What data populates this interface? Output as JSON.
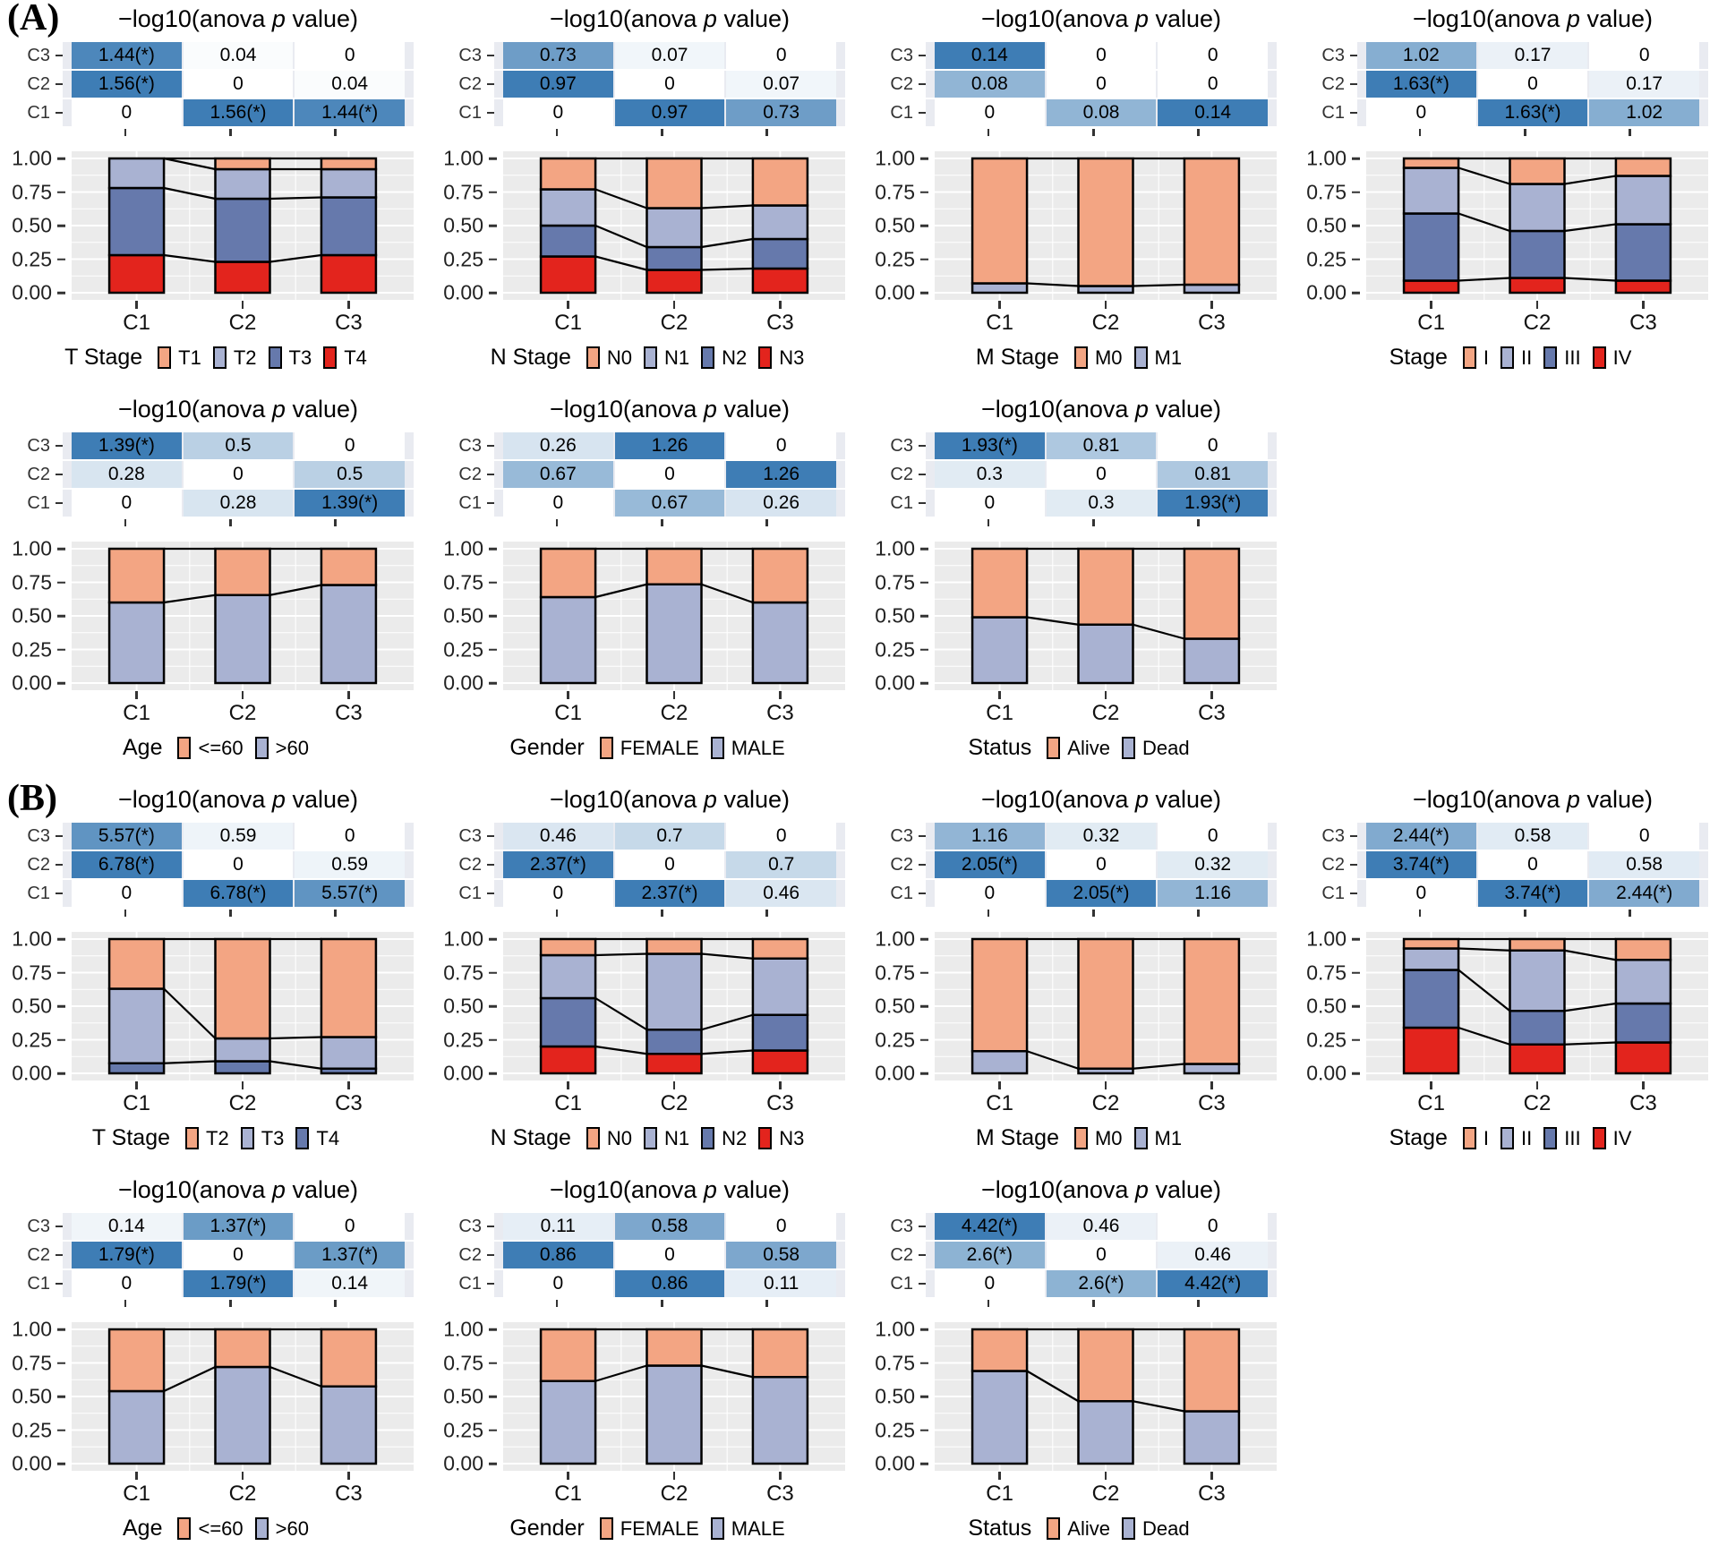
{
  "panels": {
    "A": {
      "label": "(A)"
    },
    "B": {
      "label": "(B)"
    }
  },
  "colors": {
    "peach": "#F3A583",
    "light_purple": "#A9B2D2",
    "slate": "#6679AC",
    "red": "#E3241D",
    "heat_high": "#3E7DB5",
    "plot_bg": "#EBEBEB",
    "heat_strip_bg": "#E9EBF1"
  },
  "shared": {
    "title_parts": [
      "−log10(anova ",
      "p",
      " value)"
    ],
    "heatmap_row_labels": [
      "C3",
      "C2",
      "C1"
    ],
    "categories": [
      "C1",
      "C2",
      "C3"
    ],
    "y_ticks": [
      {
        "label": "1.00",
        "frac": 1.0
      },
      {
        "label": "0.75",
        "frac": 0.75
      },
      {
        "label": "0.50",
        "frac": 0.5
      },
      {
        "label": "0.25",
        "frac": 0.25
      },
      {
        "label": "0.00",
        "frac": 0.0
      }
    ],
    "ylim": [
      0,
      1
    ],
    "grid": true,
    "legend_position": "bottom"
  },
  "chart_data": [
    {
      "panel": "A",
      "type": "bar",
      "legend_title": "T Stage",
      "heatmap": [
        [
          "1.44(*)",
          "0.04",
          "0"
        ],
        [
          "1.56(*)",
          "0",
          "0.04"
        ],
        [
          "0",
          "1.56(*)",
          "1.44(*)"
        ]
      ],
      "series": [
        {
          "name": "T4",
          "color_key": "red",
          "values": [
            0.28,
            0.23,
            0.28
          ]
        },
        {
          "name": "T3",
          "color_key": "slate",
          "values": [
            0.5,
            0.47,
            0.43
          ]
        },
        {
          "name": "T2",
          "color_key": "light_purple",
          "values": [
            0.22,
            0.22,
            0.21
          ]
        },
        {
          "name": "T1",
          "color_key": "peach",
          "values": [
            0.0,
            0.08,
            0.08
          ]
        }
      ]
    },
    {
      "panel": "A",
      "type": "bar",
      "legend_title": "N Stage",
      "heatmap": [
        [
          "0.73",
          "0.07",
          "0"
        ],
        [
          "0.97",
          "0",
          "0.07"
        ],
        [
          "0",
          "0.97",
          "0.73"
        ]
      ],
      "series": [
        {
          "name": "N3",
          "color_key": "red",
          "values": [
            0.27,
            0.17,
            0.18
          ]
        },
        {
          "name": "N2",
          "color_key": "slate",
          "values": [
            0.23,
            0.17,
            0.22
          ]
        },
        {
          "name": "N1",
          "color_key": "light_purple",
          "values": [
            0.27,
            0.29,
            0.25
          ]
        },
        {
          "name": "N0",
          "color_key": "peach",
          "values": [
            0.23,
            0.37,
            0.35
          ]
        }
      ]
    },
    {
      "panel": "A",
      "type": "bar",
      "legend_title": "M Stage",
      "heatmap": [
        [
          "0.14",
          "0",
          "0"
        ],
        [
          "0.08",
          "0",
          "0"
        ],
        [
          "0",
          "0.08",
          "0.14"
        ]
      ],
      "series": [
        {
          "name": "M1",
          "color_key": "light_purple",
          "values": [
            0.07,
            0.05,
            0.06
          ]
        },
        {
          "name": "M0",
          "color_key": "peach",
          "values": [
            0.93,
            0.95,
            0.94
          ]
        }
      ]
    },
    {
      "panel": "A",
      "type": "bar",
      "legend_title": "Stage",
      "heatmap": [
        [
          "1.02",
          "0.17",
          "0"
        ],
        [
          "1.63(*)",
          "0",
          "0.17"
        ],
        [
          "0",
          "1.63(*)",
          "1.02"
        ]
      ],
      "series": [
        {
          "name": "IV",
          "color_key": "red",
          "values": [
            0.09,
            0.11,
            0.09
          ]
        },
        {
          "name": "III",
          "color_key": "slate",
          "values": [
            0.5,
            0.35,
            0.42
          ]
        },
        {
          "name": "II",
          "color_key": "light_purple",
          "values": [
            0.34,
            0.35,
            0.36
          ]
        },
        {
          "name": "I",
          "color_key": "peach",
          "values": [
            0.07,
            0.19,
            0.13
          ]
        }
      ]
    },
    {
      "panel": "A",
      "type": "bar",
      "legend_title": "Age",
      "heatmap": [
        [
          "1.39(*)",
          "0.5",
          "0"
        ],
        [
          "0.28",
          "0",
          "0.5"
        ],
        [
          "0",
          "0.28",
          "1.39(*)"
        ]
      ],
      "series": [
        {
          "name": ">60",
          "color_key": "light_purple",
          "values": [
            0.6,
            0.655,
            0.73
          ]
        },
        {
          "name": "<=60",
          "color_key": "peach",
          "values": [
            0.4,
            0.345,
            0.27
          ]
        }
      ]
    },
    {
      "panel": "A",
      "type": "bar",
      "legend_title": "Gender",
      "heatmap": [
        [
          "0.26",
          "1.26",
          "0"
        ],
        [
          "0.67",
          "0",
          "1.26"
        ],
        [
          "0",
          "0.67",
          "0.26"
        ]
      ],
      "series": [
        {
          "name": "MALE",
          "color_key": "light_purple",
          "values": [
            0.64,
            0.735,
            0.6
          ]
        },
        {
          "name": "FEMALE",
          "color_key": "peach",
          "values": [
            0.36,
            0.265,
            0.4
          ]
        }
      ]
    },
    {
      "panel": "A",
      "type": "bar",
      "legend_title": "Status",
      "heatmap": [
        [
          "1.93(*)",
          "0.81",
          "0"
        ],
        [
          "0.3",
          "0",
          "0.81"
        ],
        [
          "0",
          "0.3",
          "1.93(*)"
        ]
      ],
      "series": [
        {
          "name": "Dead",
          "color_key": "light_purple",
          "values": [
            0.49,
            0.435,
            0.33
          ]
        },
        {
          "name": "Alive",
          "color_key": "peach",
          "values": [
            0.51,
            0.565,
            0.67
          ]
        }
      ]
    },
    {
      "panel": "B",
      "type": "bar",
      "legend_title": "T Stage",
      "heatmap": [
        [
          "5.57(*)",
          "0.59",
          "0"
        ],
        [
          "6.78(*)",
          "0",
          "0.59"
        ],
        [
          "0",
          "6.78(*)",
          "5.57(*)"
        ]
      ],
      "series": [
        {
          "name": "T4",
          "color_key": "slate",
          "values": [
            0.075,
            0.09,
            0.035
          ]
        },
        {
          "name": "T3",
          "color_key": "light_purple",
          "values": [
            0.555,
            0.17,
            0.235
          ]
        },
        {
          "name": "T2",
          "color_key": "peach",
          "values": [
            0.37,
            0.74,
            0.73
          ]
        }
      ]
    },
    {
      "panel": "B",
      "type": "bar",
      "legend_title": "N Stage",
      "heatmap": [
        [
          "0.46",
          "0.7",
          "0"
        ],
        [
          "2.37(*)",
          "0",
          "0.7"
        ],
        [
          "0",
          "2.37(*)",
          "0.46"
        ]
      ],
      "series": [
        {
          "name": "N3",
          "color_key": "red",
          "values": [
            0.2,
            0.145,
            0.17
          ]
        },
        {
          "name": "N2",
          "color_key": "slate",
          "values": [
            0.36,
            0.18,
            0.265
          ]
        },
        {
          "name": "N1",
          "color_key": "light_purple",
          "values": [
            0.32,
            0.565,
            0.42
          ]
        },
        {
          "name": "N0",
          "color_key": "peach",
          "values": [
            0.12,
            0.11,
            0.145
          ]
        }
      ]
    },
    {
      "panel": "B",
      "type": "bar",
      "legend_title": "M Stage",
      "heatmap": [
        [
          "1.16",
          "0.32",
          "0"
        ],
        [
          "2.05(*)",
          "0",
          "0.32"
        ],
        [
          "0",
          "2.05(*)",
          "1.16"
        ]
      ],
      "series": [
        {
          "name": "M1",
          "color_key": "light_purple",
          "values": [
            0.165,
            0.035,
            0.07
          ]
        },
        {
          "name": "M0",
          "color_key": "peach",
          "values": [
            0.835,
            0.965,
            0.93
          ]
        }
      ]
    },
    {
      "panel": "B",
      "type": "bar",
      "legend_title": "Stage",
      "heatmap": [
        [
          "2.44(*)",
          "0.58",
          "0"
        ],
        [
          "3.74(*)",
          "0",
          "0.58"
        ],
        [
          "0",
          "3.74(*)",
          "2.44(*)"
        ]
      ],
      "series": [
        {
          "name": "IV",
          "color_key": "red",
          "values": [
            0.34,
            0.215,
            0.23
          ]
        },
        {
          "name": "III",
          "color_key": "slate",
          "values": [
            0.43,
            0.25,
            0.29
          ]
        },
        {
          "name": "II",
          "color_key": "light_purple",
          "values": [
            0.16,
            0.45,
            0.325
          ]
        },
        {
          "name": "I",
          "color_key": "peach",
          "values": [
            0.07,
            0.085,
            0.155
          ]
        }
      ]
    },
    {
      "panel": "B",
      "type": "bar",
      "legend_title": "Age",
      "heatmap": [
        [
          "0.14",
          "1.37(*)",
          "0"
        ],
        [
          "1.79(*)",
          "0",
          "1.37(*)"
        ],
        [
          "0",
          "1.79(*)",
          "0.14"
        ]
      ],
      "series": [
        {
          "name": ">60",
          "color_key": "light_purple",
          "values": [
            0.54,
            0.72,
            0.575
          ]
        },
        {
          "name": "<=60",
          "color_key": "peach",
          "values": [
            0.46,
            0.28,
            0.425
          ]
        }
      ]
    },
    {
      "panel": "B",
      "type": "bar",
      "legend_title": "Gender",
      "heatmap": [
        [
          "0.11",
          "0.58",
          "0"
        ],
        [
          "0.86",
          "0",
          "0.58"
        ],
        [
          "0",
          "0.86",
          "0.11"
        ]
      ],
      "series": [
        {
          "name": "MALE",
          "color_key": "light_purple",
          "values": [
            0.615,
            0.73,
            0.645
          ]
        },
        {
          "name": "FEMALE",
          "color_key": "peach",
          "values": [
            0.385,
            0.27,
            0.355
          ]
        }
      ]
    },
    {
      "panel": "B",
      "type": "bar",
      "legend_title": "Status",
      "heatmap": [
        [
          "4.42(*)",
          "0.46",
          "0"
        ],
        [
          "2.6(*)",
          "0",
          "0.46"
        ],
        [
          "0",
          "2.6(*)",
          "4.42(*)"
        ]
      ],
      "series": [
        {
          "name": "Dead",
          "color_key": "light_purple",
          "values": [
            0.69,
            0.465,
            0.39
          ]
        },
        {
          "name": "Alive",
          "color_key": "peach",
          "values": [
            0.31,
            0.535,
            0.61
          ]
        }
      ]
    }
  ]
}
